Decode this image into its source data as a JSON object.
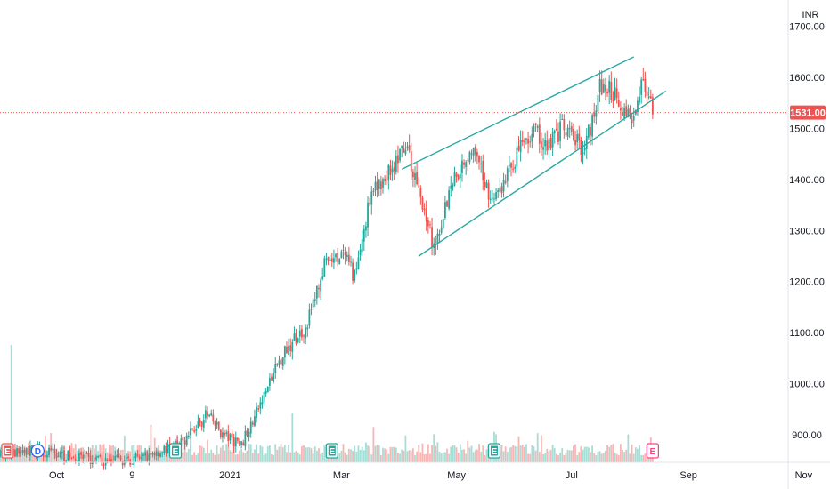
{
  "chart_data": {
    "type": "candlestick",
    "currency": "INR",
    "last_price": 1531.0,
    "last_price_label": "1531.00",
    "y_range": [
      820,
      1720
    ],
    "y_ticks": [
      {
        "value": 900,
        "label": "900.00"
      },
      {
        "value": 1000,
        "label": "1000.00"
      },
      {
        "value": 1100,
        "label": "1100.00"
      },
      {
        "value": 1200,
        "label": "1200.00"
      },
      {
        "value": 1300,
        "label": "1300.00"
      },
      {
        "value": 1400,
        "label": "1400.00"
      },
      {
        "value": 1500,
        "label": "1500.00"
      },
      {
        "value": 1600,
        "label": "1600.00"
      },
      {
        "value": 1700,
        "label": "1700.00"
      }
    ],
    "x_range_days": [
      0,
      440
    ],
    "x_ticks": [
      {
        "day": 30,
        "label": "Oct"
      },
      {
        "day": 70,
        "label": "9"
      },
      {
        "day": 122,
        "label": "2021"
      },
      {
        "day": 181,
        "label": "Mar"
      },
      {
        "day": 242,
        "label": "May"
      },
      {
        "day": 303,
        "label": "Jul"
      },
      {
        "day": 365,
        "label": "Sep"
      },
      {
        "day": 426,
        "label": "Nov"
      }
    ],
    "price_anchors": [
      [
        0,
        860
      ],
      [
        20,
        870
      ],
      [
        40,
        855
      ],
      [
        55,
        848
      ],
      [
        72,
        852
      ],
      [
        95,
        880
      ],
      [
        110,
        940
      ],
      [
        118,
        900
      ],
      [
        128,
        880
      ],
      [
        138,
        960
      ],
      [
        150,
        1060
      ],
      [
        162,
        1110
      ],
      [
        172,
        1230
      ],
      [
        182,
        1250
      ],
      [
        188,
        1210
      ],
      [
        196,
        1360
      ],
      [
        203,
        1400
      ],
      [
        215,
        1460
      ],
      [
        222,
        1380
      ],
      [
        230,
        1270
      ],
      [
        240,
        1400
      ],
      [
        250,
        1460
      ],
      [
        262,
        1350
      ],
      [
        270,
        1420
      ],
      [
        282,
        1500
      ],
      [
        290,
        1470
      ],
      [
        298,
        1500
      ],
      [
        310,
        1460
      ],
      [
        318,
        1580
      ],
      [
        326,
        1570
      ],
      [
        334,
        1515
      ],
      [
        340,
        1590
      ],
      [
        346,
        1531
      ]
    ],
    "volume_spikes": [
      {
        "day": 6,
        "rel": 1.0
      },
      {
        "day": 80,
        "rel": 0.32
      },
      {
        "day": 155,
        "rel": 0.42
      },
      {
        "day": 198,
        "rel": 0.3
      },
      {
        "day": 230,
        "rel": 0.24
      },
      {
        "day": 262,
        "rel": 0.26
      }
    ],
    "channel_upper": [
      [
        213,
        1420
      ],
      [
        336,
        1640
      ]
    ],
    "channel_lower": [
      [
        222,
        1250
      ],
      [
        353,
        1573
      ]
    ],
    "colors": {
      "up": "#26a69a",
      "down": "#ef5350",
      "volume_up": "#a8dcd5",
      "volume_down": "#f5b6b5",
      "channel": "#2aa9a5",
      "price_tag": "#ef5350"
    },
    "grid": false,
    "events": [
      {
        "day": 4,
        "letter": "E",
        "kind": "earnings",
        "color": "#ef5350"
      },
      {
        "day": 20,
        "letter": "D",
        "kind": "dividend",
        "color": "#2962ff"
      },
      {
        "day": 93,
        "letter": "E",
        "kind": "earnings",
        "color": "#26a69a"
      },
      {
        "day": 176,
        "letter": "E",
        "kind": "earnings",
        "color": "#26a69a"
      },
      {
        "day": 262,
        "letter": "E",
        "kind": "earnings",
        "color": "#26a69a"
      },
      {
        "day": 346,
        "letter": "E",
        "kind": "earnings-upcoming",
        "color": "#ff4081"
      }
    ]
  }
}
